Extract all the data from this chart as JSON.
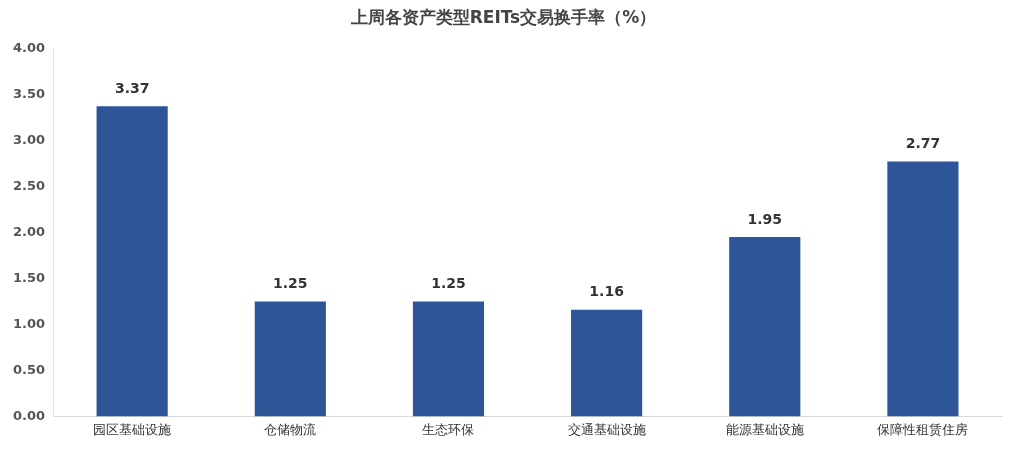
{
  "chart_data": {
    "type": "bar",
    "title": "上周各资产类型REITs交易换手率（%）",
    "categories": [
      "园区基础设施",
      "仓储物流",
      "生态环保",
      "交通基础设施",
      "能源基础设施",
      "保障性租赁住房"
    ],
    "values": [
      3.37,
      1.25,
      1.25,
      1.16,
      1.95,
      2.77
    ],
    "color": "#2e5597",
    "ylim": [
      0,
      4
    ],
    "yticks": [
      {
        "value": 0,
        "label": "0.00"
      },
      {
        "value": 0.5,
        "label": "0.50"
      },
      {
        "value": 1,
        "label": "1.00"
      },
      {
        "value": 1.5,
        "label": "1.50"
      },
      {
        "value": 2,
        "label": "2.00"
      },
      {
        "value": 2.5,
        "label": "2.50"
      },
      {
        "value": 3,
        "label": "3.00"
      },
      {
        "value": 3.5,
        "label": "3.50"
      },
      {
        "value": 4,
        "label": "4.00"
      }
    ],
    "grid": false,
    "data_labels": true
  }
}
